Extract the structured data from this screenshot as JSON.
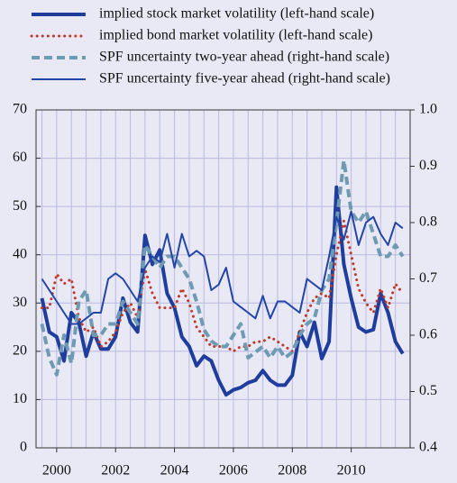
{
  "chart_data": {
    "type": "line",
    "x": [
      1999.5,
      1999.75,
      2000,
      2000.25,
      2000.5,
      2000.75,
      2001,
      2001.25,
      2001.5,
      2001.75,
      2002,
      2002.25,
      2002.5,
      2002.75,
      2003,
      2003.25,
      2003.5,
      2003.75,
      2004,
      2004.25,
      2004.5,
      2004.75,
      2005,
      2005.25,
      2005.5,
      2005.75,
      2006,
      2006.25,
      2006.5,
      2006.75,
      2007,
      2007.25,
      2007.5,
      2007.75,
      2008,
      2008.25,
      2008.5,
      2008.75,
      2009,
      2009.25,
      2009.5,
      2009.75,
      2010,
      2010.25,
      2010.5,
      2010.75,
      2011,
      2011.25,
      2011.5,
      2011.75
    ],
    "xlim": [
      1999.3,
      2012
    ],
    "xticks": [
      2000,
      2002,
      2004,
      2006,
      2008,
      2010
    ],
    "xminorticks": [
      1999.5,
      2000.5,
      2001,
      2001.5,
      2002.5,
      2003,
      2003.5,
      2004.5,
      2005,
      2005.5,
      2006.5,
      2007,
      2007.5,
      2008.5,
      2009,
      2009.5,
      2010.5,
      2011,
      2011.5
    ],
    "ylim": [
      0,
      70
    ],
    "yticks": [
      0,
      10,
      20,
      30,
      40,
      50,
      60,
      70
    ],
    "y2lim": [
      0.4,
      1.0
    ],
    "y2ticks": [
      0.4,
      0.5,
      0.6,
      0.7,
      0.8,
      0.9,
      {
        "value": 1,
        "label": "1.0"
      }
    ],
    "grid": true,
    "series": [
      {
        "name": "implied stock market volatility (left-hand scale)",
        "color": "#1f3d9c",
        "line_style": "thick",
        "values": [
          31,
          24,
          23,
          18,
          28,
          26,
          19,
          24,
          20.5,
          20.5,
          23,
          31,
          26,
          24,
          44,
          38,
          41,
          32,
          29,
          23,
          21,
          17,
          19,
          18,
          14,
          11,
          12,
          12.5,
          13.5,
          14,
          16,
          14,
          13,
          13,
          15,
          24,
          21,
          26,
          18.5,
          22,
          54,
          38,
          31,
          25,
          24,
          24.5,
          32,
          28,
          22,
          19.5
        ]
      },
      {
        "name": "implied bond market volatility (left-hand scale)",
        "color": "#c0392b",
        "line_style": "dotted",
        "values": [
          29,
          29,
          36,
          34,
          35,
          27,
          24,
          25,
          21,
          22,
          24,
          28,
          30,
          27,
          37,
          32,
          29,
          29,
          29,
          33,
          30,
          25,
          23,
          21,
          21,
          21,
          20,
          21,
          21,
          22,
          22,
          23,
          22,
          21,
          20,
          24,
          28,
          31,
          32,
          31,
          40,
          47,
          40,
          33,
          30,
          28,
          33,
          29,
          34,
          32
        ]
      },
      {
        "name": "SPF uncertainty two-year ahead (right-hand scale)",
        "color": "#6f9bb2",
        "line_style": "dashed",
        "axis": "y2",
        "values": [
          0.62,
          0.56,
          0.53,
          0.6,
          0.55,
          0.66,
          0.68,
          0.6,
          0.6,
          0.62,
          0.62,
          0.66,
          0.64,
          0.62,
          0.76,
          0.74,
          0.72,
          0.74,
          0.74,
          0.72,
          0.7,
          0.66,
          0.61,
          0.59,
          0.58,
          0.58,
          0.6,
          0.62,
          0.56,
          0.57,
          0.58,
          0.56,
          0.58,
          0.56,
          0.57,
          0.6,
          0.62,
          0.63,
          0.68,
          0.7,
          0.8,
          0.91,
          0.82,
          0.8,
          0.82,
          0.78,
          0.74,
          0.74,
          0.76,
          0.74
        ]
      },
      {
        "name": "SPF uncertainty five-year ahead (right-hand scale)",
        "color": "#2445a8",
        "line_style": "solid",
        "axis": "y2",
        "values": [
          0.7,
          0.68,
          0.66,
          0.64,
          0.62,
          0.62,
          0.63,
          0.64,
          0.64,
          0.7,
          0.71,
          0.7,
          0.68,
          0.66,
          0.72,
          0.74,
          0.73,
          0.78,
          0.72,
          0.78,
          0.74,
          0.75,
          0.74,
          0.68,
          0.69,
          0.72,
          0.66,
          0.65,
          0.64,
          0.63,
          0.67,
          0.63,
          0.66,
          0.66,
          0.65,
          0.64,
          0.7,
          0.69,
          0.68,
          0.74,
          0.81,
          0.77,
          0.82,
          0.76,
          0.8,
          0.81,
          0.78,
          0.76,
          0.8,
          0.79
        ]
      }
    ]
  }
}
